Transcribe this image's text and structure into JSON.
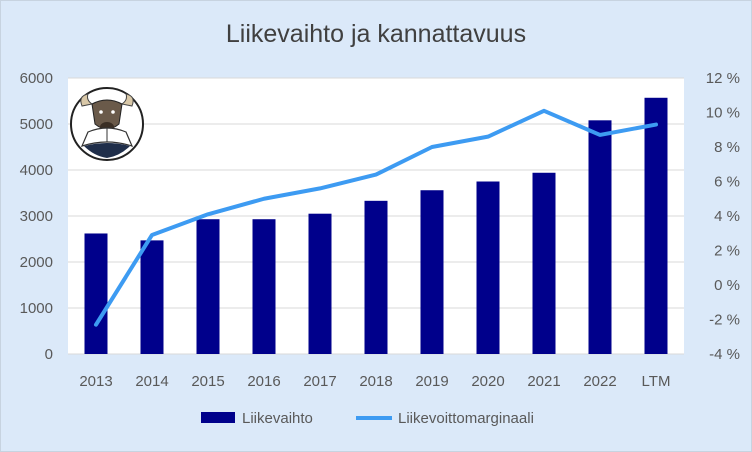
{
  "chart_data": {
    "type": "bar",
    "title": "Liikevaihto ja kannattavuus",
    "categories": [
      "2013",
      "2014",
      "2015",
      "2016",
      "2017",
      "2018",
      "2019",
      "2020",
      "2021",
      "2022",
      "LTM"
    ],
    "series": [
      {
        "name": "Liikevaihto",
        "type": "bar",
        "axis": "left",
        "color": "#00008b",
        "values": [
          2620,
          2470,
          2930,
          2930,
          3050,
          3330,
          3560,
          3750,
          3940,
          5080,
          5570
        ]
      },
      {
        "name": "Liikevoittomarginaali",
        "type": "line",
        "axis": "right",
        "color": "#3d9bf2",
        "values": [
          -2.3,
          2.9,
          4.1,
          5.0,
          5.6,
          6.4,
          8.0,
          8.6,
          10.1,
          8.7,
          9.3
        ]
      }
    ],
    "y_left": {
      "min": 0,
      "max": 6000,
      "step": 1000,
      "tick_labels": [
        "0",
        "1000",
        "2000",
        "3000",
        "4000",
        "5000",
        "6000"
      ]
    },
    "y_right": {
      "min": -4,
      "max": 12,
      "step": 2,
      "tick_labels": [
        "-4 %",
        "-2 %",
        "0 %",
        "2 %",
        "4 %",
        "6 %",
        "8 %",
        "10 %",
        "12 %"
      ]
    },
    "grid": true,
    "legend_position": "bottom"
  },
  "logo": {
    "name": "bull-reading-book-logo"
  }
}
